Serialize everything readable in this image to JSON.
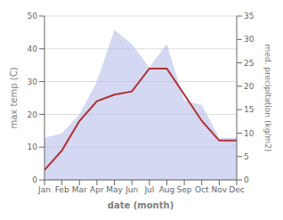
{
  "chart_data": {
    "type": "line",
    "categories": [
      "Jan",
      "Feb",
      "Mar",
      "Apr",
      "May",
      "Jun",
      "Jul",
      "Aug",
      "Sep",
      "Oct",
      "Nov",
      "Dec"
    ],
    "series": [
      {
        "type": "line",
        "color": "#b03030",
        "values": [
          3,
          9,
          18,
          24,
          26,
          27,
          34,
          34,
          26,
          18,
          12,
          12
        ]
      },
      {
        "type": "area",
        "color": "#b0b8e8",
        "axis": "y2",
        "values": [
          9,
          10,
          14,
          21,
          32,
          29,
          24,
          29,
          17,
          16,
          9,
          9
        ]
      }
    ],
    "xlabel": "date (month)",
    "ylabel": "max temp (C)",
    "y2label": "med. precipitation (kg/m2)",
    "ylim": [
      0,
      50
    ],
    "yticks": [
      0,
      10,
      20,
      30,
      40,
      50
    ],
    "y2lim": [
      0,
      35
    ],
    "y2ticks": [
      0,
      5,
      10,
      15,
      20,
      25,
      30,
      35
    ],
    "grid": true
  }
}
